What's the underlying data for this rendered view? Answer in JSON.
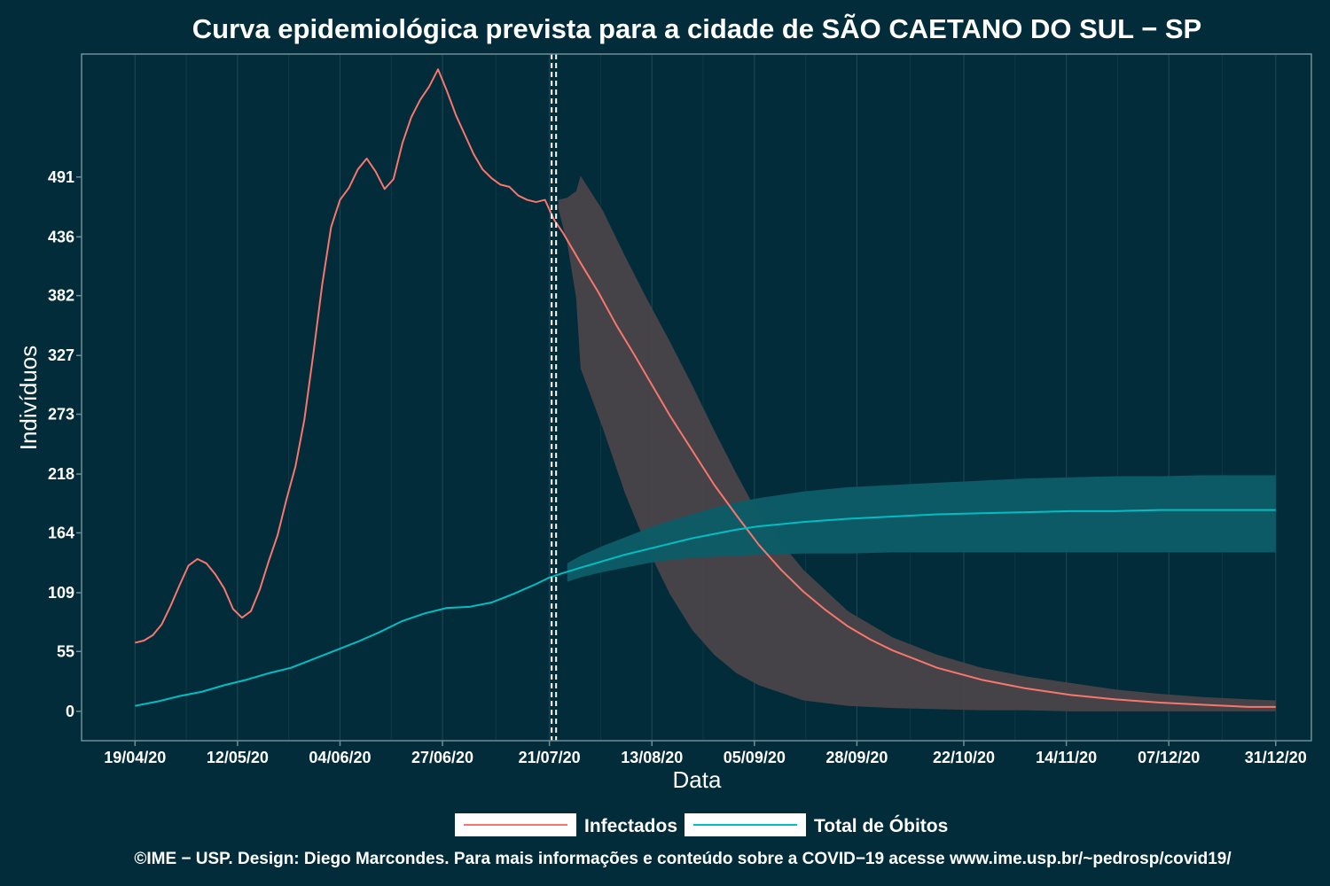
{
  "chart_data": {
    "type": "line",
    "title": "Curva epidemiológica prevista para a cidade de SÃO CAETANO DO SUL − SP",
    "xlabel": "Data",
    "ylabel": "Indivíduos",
    "x_tick_labels": [
      "19/04/20",
      "12/05/20",
      "04/06/20",
      "27/06/20",
      "21/07/20",
      "13/08/20",
      "05/09/20",
      "28/09/20",
      "22/10/20",
      "14/11/20",
      "07/12/20",
      "31/12/20"
    ],
    "x_tick_days": [
      0,
      23,
      46,
      69,
      93,
      116,
      139,
      162,
      186,
      209,
      232,
      256
    ],
    "y_ticks": [
      0,
      55,
      109,
      164,
      218,
      273,
      327,
      382,
      436,
      491
    ],
    "xlim_days": [
      -12,
      264
    ],
    "ylim": [
      -27,
      604
    ],
    "vlines_days": [
      93.5,
      94.5
    ],
    "grid": true,
    "legend_position": "bottom",
    "colors": {
      "infectados": "#f8766d",
      "obitos": "#00bfc4",
      "band_infectados": "#4a4549",
      "band_obitos": "#0c5d68"
    },
    "series": [
      {
        "name": "Infectados",
        "x_days": [
          0,
          2,
          4,
          6,
          8,
          10,
          12,
          14,
          16,
          18,
          20,
          22,
          24,
          26,
          28,
          30,
          32,
          34,
          36,
          38,
          40,
          42,
          44,
          46,
          48,
          50,
          52,
          54,
          56,
          58,
          60,
          62,
          64,
          66,
          68,
          70,
          72,
          74,
          76,
          78,
          80,
          82,
          84,
          86,
          88,
          90,
          92,
          94,
          96,
          100,
          104,
          108,
          112,
          116,
          120,
          125,
          130,
          135,
          140,
          145,
          150,
          155,
          160,
          165,
          170,
          180,
          190,
          200,
          210,
          220,
          230,
          240,
          250,
          256
        ],
        "values": [
          63,
          65,
          70,
          80,
          97,
          116,
          134,
          140,
          136,
          126,
          113,
          94,
          86,
          92,
          112,
          138,
          162,
          195,
          225,
          268,
          328,
          392,
          445,
          470,
          481,
          498,
          508,
          496,
          480,
          489,
          522,
          546,
          562,
          574,
          590,
          570,
          548,
          530,
          512,
          498,
          490,
          484,
          482,
          474,
          470,
          468,
          470,
          452,
          440,
          412,
          385,
          355,
          328,
          300,
          272,
          240,
          208,
          180,
          153,
          130,
          110,
          93,
          78,
          66,
          56,
          40,
          29,
          21,
          15,
          11,
          8,
          6,
          4,
          4
        ]
      },
      {
        "name": "Total de Óbitos",
        "x_days": [
          0,
          5,
          10,
          15,
          20,
          25,
          30,
          35,
          40,
          45,
          50,
          55,
          60,
          65,
          70,
          75,
          80,
          85,
          90,
          93,
          96,
          100,
          105,
          110,
          115,
          120,
          125,
          130,
          135,
          140,
          150,
          160,
          170,
          180,
          190,
          200,
          210,
          220,
          230,
          240,
          256
        ],
        "values": [
          5,
          9,
          14,
          18,
          24,
          29,
          35,
          40,
          48,
          56,
          64,
          73,
          83,
          90,
          95,
          96,
          100,
          108,
          117,
          123,
          127,
          132,
          138,
          144,
          149,
          154,
          159,
          163,
          167,
          170,
          174,
          177,
          179,
          181,
          182,
          183,
          184,
          184,
          185,
          185,
          185
        ]
      }
    ],
    "bands": [
      {
        "series": "Infectados",
        "x_days": [
          95,
          97,
          99,
          100,
          105,
          110,
          115,
          120,
          125,
          130,
          135,
          140,
          150,
          160,
          170,
          180,
          190,
          200,
          210,
          220,
          230,
          240,
          250,
          256
        ],
        "lower": [
          462,
          430,
          380,
          315,
          260,
          200,
          150,
          108,
          75,
          52,
          35,
          24,
          10,
          5,
          3,
          2,
          1,
          1,
          0,
          0,
          0,
          0,
          0,
          0
        ],
        "upper": [
          470,
          472,
          478,
          492,
          460,
          418,
          378,
          340,
          300,
          258,
          218,
          180,
          130,
          92,
          68,
          52,
          40,
          32,
          26,
          20,
          16,
          13,
          11,
          10
        ]
      },
      {
        "series": "Total de Óbitos",
        "x_days": [
          97,
          100,
          105,
          110,
          115,
          120,
          125,
          130,
          135,
          140,
          150,
          160,
          170,
          180,
          190,
          200,
          210,
          220,
          230,
          240,
          256
        ],
        "lower": [
          119,
          123,
          128,
          132,
          136,
          139,
          141,
          142,
          143,
          144,
          145,
          145,
          146,
          146,
          146,
          146,
          146,
          146,
          146,
          146,
          146
        ],
        "upper": [
          136,
          143,
          152,
          160,
          168,
          175,
          181,
          187,
          192,
          196,
          202,
          206,
          208,
          210,
          212,
          214,
          215,
          216,
          216,
          217,
          217
        ]
      }
    ],
    "legend": [
      {
        "label": "Infectados",
        "series": "Infectados"
      },
      {
        "label": "Total de Óbitos",
        "series": "Total de Óbitos"
      }
    ]
  },
  "footer": {
    "caption": "©IME − USP. Design: Diego Marcondes. Para mais informações e conteúdo sobre a COVID−19 acesse www.ime.usp.br/~pedrosp/covid19/"
  }
}
